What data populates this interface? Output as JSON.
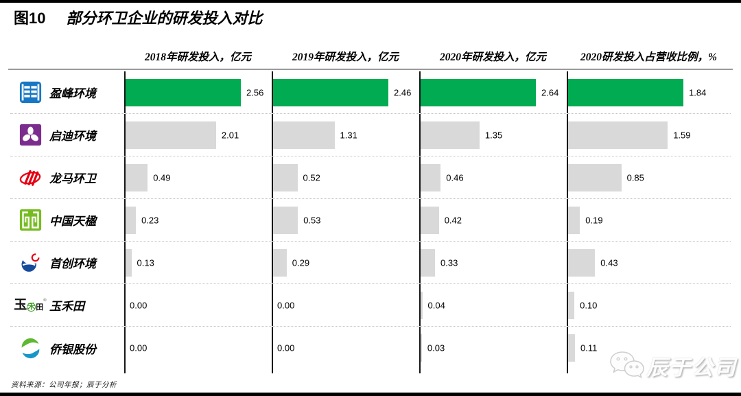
{
  "header": {
    "figure_label": "图10",
    "title": "部分环卫企业的研发投入对比"
  },
  "footer": {
    "source_note": "资料来源：公司年报；辰于分析"
  },
  "watermark": {
    "brand": "辰于公司",
    "icon": "wechat-icon"
  },
  "chart_data": {
    "type": "bar",
    "orientation": "horizontal",
    "categories": [
      "盈峰环境",
      "启迪环境",
      "龙马环卫",
      "中国天楹",
      "首创环境",
      "玉禾田",
      "侨银股份"
    ],
    "panels": [
      {
        "title": "2018年研发投入，亿元",
        "max": 2.56
      },
      {
        "title": "2019年研发投入，亿元",
        "max": 2.46
      },
      {
        "title": "2020年研发投入，亿元",
        "max": 2.64
      },
      {
        "title": "2020研发投入占营收比例，%",
        "max": 1.84
      }
    ],
    "series": [
      {
        "name": "2018年研发投入，亿元",
        "values": [
          2.56,
          2.01,
          0.49,
          0.23,
          0.13,
          0.0,
          0.0
        ]
      },
      {
        "name": "2019年研发投入，亿元",
        "values": [
          2.46,
          1.31,
          0.52,
          0.53,
          0.29,
          0.0,
          0.0
        ]
      },
      {
        "name": "2020年研发投入，亿元",
        "values": [
          2.64,
          1.35,
          0.46,
          0.42,
          0.33,
          0.04,
          0.03
        ]
      },
      {
        "name": "2020研发投入占营收比例，%",
        "values": [
          1.84,
          1.59,
          0.85,
          0.19,
          0.43,
          0.1,
          0.11
        ]
      }
    ],
    "highlight_category": "盈峰环境",
    "bar_colors": {
      "highlight": "#00AB51",
      "default": "#D9D9D9"
    },
    "grid": "dotted row separators",
    "legend": "none",
    "value_labels": "right of bars, 2 decimals"
  },
  "logos": [
    {
      "company": "盈峰环境",
      "icon": "yingfeng-logo-icon",
      "color": "#1777C4"
    },
    {
      "company": "启迪环境",
      "icon": "qidi-logo-icon",
      "color": "#7B2D8E"
    },
    {
      "company": "龙马环卫",
      "icon": "longma-logo-icon",
      "color": "#E60012"
    },
    {
      "company": "中国天楹",
      "icon": "tianying-logo-icon",
      "color": "#76BC21"
    },
    {
      "company": "首创环境",
      "icon": "shouchuang-logo-icon",
      "color": "#164A9A"
    },
    {
      "company": "玉禾田",
      "icon": "yuhetian-logo-icon",
      "color": "#3f9e27"
    },
    {
      "company": "侨银股份",
      "icon": "qiaoyin-logo-icon",
      "color": "#5EB830"
    }
  ]
}
